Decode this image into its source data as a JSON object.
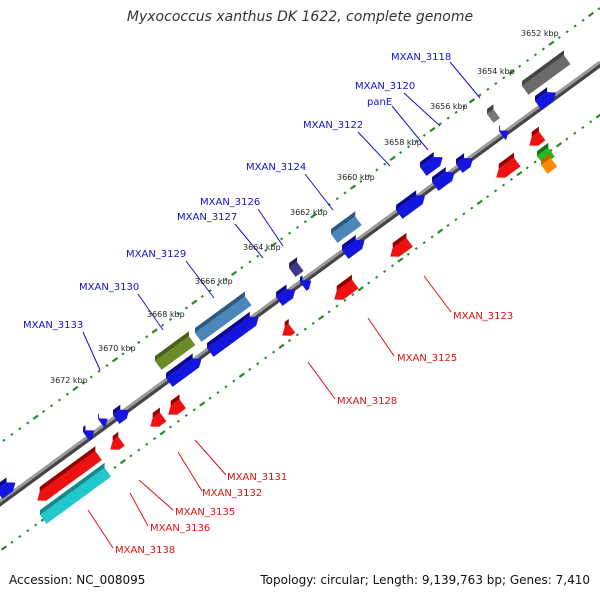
{
  "title": "Myxococcus xanthus DK 1622, complete genome",
  "accession": "Accession: NC_008095",
  "summary": "Topology: circular; Length: 9,139,763 bp; Genes: 7,410",
  "colors": {
    "forward_label": "#1111cc",
    "reverse_label": "#dd1111",
    "backbone": "#777777",
    "tick": "#228b22"
  },
  "kbp_ticks": [
    {
      "label": "3652 kbp"
    },
    {
      "label": "3654 kbp"
    },
    {
      "label": "3656 kbp"
    },
    {
      "label": "3658 kbp"
    },
    {
      "label": "3660 kbp"
    },
    {
      "label": "3662 kbp"
    },
    {
      "label": "3664 kbp"
    },
    {
      "label": "3666 kbp"
    },
    {
      "label": "3668 kbp"
    },
    {
      "label": "3670 kbp"
    },
    {
      "label": "3672 kbp"
    }
  ],
  "forward_gene_labels": [
    {
      "label": "MXAN_3118"
    },
    {
      "label": "MXAN_3120"
    },
    {
      "label": "panE"
    },
    {
      "label": "MXAN_3122"
    },
    {
      "label": "MXAN_3124"
    },
    {
      "label": "MXAN_3126"
    },
    {
      "label": "MXAN_3127"
    },
    {
      "label": "MXAN_3129"
    },
    {
      "label": "MXAN_3130"
    },
    {
      "label": "MXAN_3133"
    }
  ],
  "reverse_gene_labels": [
    {
      "label": "MXAN_3123"
    },
    {
      "label": "MXAN_3125"
    },
    {
      "label": "MXAN_3128"
    },
    {
      "label": "MXAN_3131"
    },
    {
      "label": "MXAN_3132"
    },
    {
      "label": "MXAN_3135"
    },
    {
      "label": "MXAN_3136"
    },
    {
      "label": "MXAN_3138"
    }
  ]
}
